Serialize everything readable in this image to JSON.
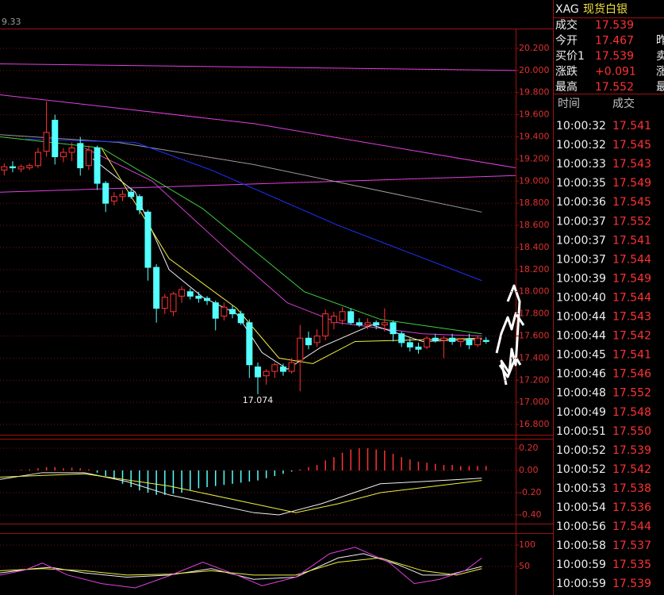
{
  "header": {
    "corner_label": "9.33",
    "symbol": "XAG",
    "name": "现货白银"
  },
  "quote": [
    {
      "label": "成交",
      "value": "17.539"
    },
    {
      "label": "今开",
      "value": "17.467",
      "extra": "昨"
    },
    {
      "label": "买价1",
      "value": "17.539",
      "extra": "卖"
    },
    {
      "label": "涨跌",
      "value": "+0.091",
      "extra": "涨"
    },
    {
      "label": "最高",
      "value": "17.552",
      "extra": "最"
    }
  ],
  "trades_header": [
    "时间",
    "成交"
  ],
  "trades": [
    [
      "10:00:32",
      "17.541"
    ],
    [
      "10:00:32",
      "17.545"
    ],
    [
      "10:00:33",
      "17.543"
    ],
    [
      "10:00:35",
      "17.549"
    ],
    [
      "10:00:36",
      "17.545"
    ],
    [
      "10:00:37",
      "17.552"
    ],
    [
      "10:00:37",
      "17.541"
    ],
    [
      "10:00:37",
      "17.544"
    ],
    [
      "10:00:39",
      "17.549"
    ],
    [
      "10:00:40",
      "17.544"
    ],
    [
      "10:00:44",
      "17.543"
    ],
    [
      "10:00:44",
      "17.542"
    ],
    [
      "10:00:45",
      "17.541"
    ],
    [
      "10:00:46",
      "17.546"
    ],
    [
      "10:00:48",
      "17.552"
    ],
    [
      "10:00:49",
      "17.548"
    ],
    [
      "10:00:51",
      "17.550"
    ],
    [
      "10:00:52",
      "17.539"
    ],
    [
      "10:00:52",
      "17.542"
    ],
    [
      "10:00:53",
      "17.538"
    ],
    [
      "10:00:54",
      "17.536"
    ],
    [
      "10:00:56",
      "17.544"
    ],
    [
      "10:00:58",
      "17.537"
    ],
    [
      "10:00:59",
      "17.535"
    ],
    [
      "10:00:59",
      "17.539"
    ]
  ],
  "chart_data": [
    {
      "type": "candlestick",
      "xlim": [
        0,
        61
      ],
      "ylim": [
        16.707,
        20.379
      ],
      "grid": true,
      "up_color": "#ff3232",
      "down_color": "#54ffff",
      "yticks": [
        {
          "value": 20.2,
          "label": "20.200"
        },
        {
          "value": 20.0,
          "label": "20.000"
        },
        {
          "value": 19.8,
          "label": "19.800"
        },
        {
          "value": 19.6,
          "label": "19.600"
        },
        {
          "value": 19.4,
          "label": "19.400"
        },
        {
          "value": 19.2,
          "label": "19.200"
        },
        {
          "value": 19.0,
          "label": "19.000"
        },
        {
          "value": 18.8,
          "label": "18.800"
        },
        {
          "value": 18.6,
          "label": "18.600"
        },
        {
          "value": 18.4,
          "label": "18.400"
        },
        {
          "value": 18.2,
          "label": "18.200"
        },
        {
          "value": 18.0,
          "label": "18.000"
        },
        {
          "value": 17.8,
          "label": "17.800"
        },
        {
          "value": 17.6,
          "label": "17.600"
        },
        {
          "value": 17.4,
          "label": "17.400"
        },
        {
          "value": 17.2,
          "label": "17.200"
        },
        {
          "value": 17.0,
          "label": "17.000"
        },
        {
          "value": 16.8,
          "label": "16.800"
        }
      ],
      "candles": [
        [
          19.1,
          19.16,
          19.05,
          19.13
        ],
        [
          19.13,
          19.18,
          19.08,
          19.12
        ],
        [
          19.11,
          19.15,
          19.08,
          19.13
        ],
        [
          19.12,
          19.16,
          19.1,
          19.14
        ],
        [
          19.14,
          19.3,
          19.12,
          19.26
        ],
        [
          19.27,
          19.72,
          19.22,
          19.44
        ],
        [
          19.55,
          19.6,
          19.15,
          19.22
        ],
        [
          19.22,
          19.3,
          19.17,
          19.26
        ],
        [
          19.26,
          19.35,
          19.18,
          19.3
        ],
        [
          19.34,
          19.4,
          19.05,
          19.12
        ],
        [
          19.14,
          19.32,
          19.1,
          19.28
        ],
        [
          19.3,
          19.32,
          18.92,
          18.98
        ],
        [
          18.98,
          19.0,
          18.72,
          18.8
        ],
        [
          18.82,
          18.9,
          18.78,
          18.86
        ],
        [
          18.86,
          18.92,
          18.82,
          18.88
        ],
        [
          18.9,
          18.94,
          18.84,
          18.86
        ],
        [
          18.86,
          18.88,
          18.7,
          18.74
        ],
        [
          18.72,
          18.74,
          18.1,
          18.22
        ],
        [
          18.22,
          18.25,
          17.72,
          17.85
        ],
        [
          17.85,
          17.98,
          17.8,
          17.95
        ],
        [
          17.82,
          18.0,
          17.78,
          17.98
        ],
        [
          17.96,
          18.05,
          17.9,
          18.02
        ],
        [
          18.0,
          18.03,
          17.93,
          17.96
        ],
        [
          17.96,
          18.0,
          17.9,
          17.94
        ],
        [
          17.94,
          17.96,
          17.88,
          17.92
        ],
        [
          17.9,
          17.92,
          17.65,
          17.76
        ],
        [
          17.78,
          17.9,
          17.74,
          17.86
        ],
        [
          17.84,
          17.88,
          17.76,
          17.8
        ],
        [
          17.8,
          17.83,
          17.7,
          17.72
        ],
        [
          17.72,
          17.75,
          17.22,
          17.34
        ],
        [
          17.32,
          17.36,
          17.074,
          17.23
        ],
        [
          17.24,
          17.3,
          17.16,
          17.28
        ],
        [
          17.28,
          17.36,
          17.22,
          17.34
        ],
        [
          17.32,
          17.35,
          17.24,
          17.28
        ],
        [
          17.28,
          17.4,
          17.26,
          17.36
        ],
        [
          17.38,
          17.7,
          17.1,
          17.58
        ],
        [
          17.58,
          17.64,
          17.48,
          17.52
        ],
        [
          17.54,
          17.66,
          17.5,
          17.6
        ],
        [
          17.6,
          17.84,
          17.56,
          17.8
        ],
        [
          17.72,
          17.82,
          17.66,
          17.78
        ],
        [
          17.74,
          17.86,
          17.7,
          17.82
        ],
        [
          17.82,
          17.85,
          17.7,
          17.72
        ],
        [
          17.72,
          17.76,
          17.68,
          17.7
        ],
        [
          17.7,
          17.76,
          17.66,
          17.72
        ],
        [
          17.72,
          17.74,
          17.66,
          17.7
        ],
        [
          17.7,
          17.85,
          17.64,
          17.72
        ],
        [
          17.72,
          17.74,
          17.55,
          17.62
        ],
        [
          17.62,
          17.64,
          17.5,
          17.54
        ],
        [
          17.54,
          17.58,
          17.46,
          17.5
        ],
        [
          17.5,
          17.54,
          17.44,
          17.48
        ],
        [
          17.5,
          17.6,
          17.48,
          17.58
        ],
        [
          17.58,
          17.62,
          17.54,
          17.56
        ],
        [
          17.56,
          17.6,
          17.4,
          17.58
        ],
        [
          17.58,
          17.62,
          17.52,
          17.55
        ],
        [
          17.55,
          17.58,
          17.5,
          17.57
        ],
        [
          17.57,
          17.62,
          17.48,
          17.52
        ],
        [
          17.52,
          17.6,
          17.5,
          17.58
        ],
        [
          17.56,
          17.59,
          17.53,
          17.55
        ]
      ],
      "low_label": {
        "x": 30.5,
        "value": 17.074,
        "label": "17.074"
      },
      "lines": [
        {
          "color": "#e040e0",
          "x": [
            0,
            61
          ],
          "values": [
            20.06,
            20.0
          ]
        },
        {
          "color": "#e040e0",
          "x": [
            0,
            30,
            61
          ],
          "values": [
            19.78,
            19.52,
            19.12
          ]
        },
        {
          "color": "#e040e0",
          "x": [
            0,
            61
          ],
          "values": [
            18.9,
            19.05
          ]
        },
        {
          "color": "#9a9a9a",
          "x": [
            0,
            14,
            30,
            57
          ],
          "values": [
            19.42,
            19.35,
            19.15,
            18.72
          ]
        },
        {
          "color": "#2030ff",
          "x": [
            3,
            16,
            25,
            40,
            57
          ],
          "values": [
            19.38,
            19.35,
            19.1,
            18.6,
            18.1
          ]
        },
        {
          "color": "#40d040",
          "x": [
            0,
            12,
            24,
            36,
            45,
            57
          ],
          "values": [
            19.4,
            19.3,
            18.75,
            18.0,
            17.75,
            17.62
          ]
        },
        {
          "color": "#d040d0",
          "x": [
            10,
            18,
            28,
            34,
            40,
            50,
            57
          ],
          "values": [
            19.3,
            19.0,
            18.3,
            17.9,
            17.72,
            17.62,
            17.6
          ]
        },
        {
          "color": "#f0f0f0",
          "x": [
            11,
            16,
            20,
            24,
            28,
            31,
            34,
            38,
            44,
            50,
            57
          ],
          "values": [
            19.2,
            18.9,
            18.2,
            17.95,
            17.8,
            17.45,
            17.3,
            17.5,
            17.7,
            17.55,
            17.57
          ]
        },
        {
          "color": "#f0f040",
          "x": [
            12,
            20,
            28,
            33,
            37,
            42,
            57
          ],
          "values": [
            19.3,
            18.3,
            17.85,
            17.4,
            17.35,
            17.55,
            17.58
          ]
        }
      ]
    },
    {
      "type": "bar",
      "xlim": [
        0,
        61
      ],
      "ylim": [
        -0.443,
        0.286
      ],
      "grid": true,
      "up_color": "#ff3232",
      "down_color": "#54ffff",
      "yticks": [
        {
          "value": 0.2,
          "label": "0.20"
        },
        {
          "value": 0,
          "label": "0.00"
        },
        {
          "value": -0.2,
          "label": "-0.20"
        },
        {
          "value": -0.4,
          "label": "-0.40"
        }
      ],
      "values": [
        0,
        0,
        0.005,
        0.01,
        0.02,
        0.03,
        0.03,
        0.02,
        0.025,
        0.02,
        0.01,
        -0.02,
        -0.05,
        -0.08,
        -0.12,
        -0.15,
        -0.18,
        -0.2,
        -0.22,
        -0.22,
        -0.21,
        -0.2,
        -0.18,
        -0.16,
        -0.15,
        -0.14,
        -0.13,
        -0.12,
        -0.11,
        -0.1,
        -0.09,
        -0.07,
        -0.05,
        -0.03,
        -0.01,
        0.01,
        0.03,
        0.05,
        0.09,
        0.12,
        0.16,
        0.19,
        0.2,
        0.2,
        0.19,
        0.18,
        0.15,
        0.12,
        0.1,
        0.08,
        0.07,
        0.06,
        0.05,
        0.05,
        0.04,
        0.04,
        0.04,
        0.04
      ],
      "lines": [
        {
          "color": "#f0f0f0",
          "x": [
            0,
            5,
            10,
            15,
            20,
            25,
            30,
            33,
            38,
            45,
            50,
            57
          ],
          "values": [
            -0.08,
            -0.02,
            -0.02,
            -0.1,
            -0.22,
            -0.3,
            -0.38,
            -0.4,
            -0.3,
            -0.12,
            -0.1,
            -0.07
          ]
        },
        {
          "color": "#f0f040",
          "x": [
            0,
            10,
            20,
            30,
            35,
            40,
            45,
            57
          ],
          "values": [
            -0.06,
            -0.03,
            -0.14,
            -0.3,
            -0.38,
            -0.3,
            -0.2,
            -0.09
          ]
        }
      ]
    },
    {
      "type": "line",
      "xlim": [
        0,
        61
      ],
      "ylim": [
        -13,
        128
      ],
      "grid": true,
      "yticks": [
        100,
        50
      ],
      "lines": [
        {
          "color": "#f0f0f0",
          "x": [
            0,
            4,
            6,
            10,
            15,
            20,
            25,
            30,
            35,
            40,
            43,
            47,
            50,
            53,
            57
          ],
          "values": [
            35,
            45,
            48,
            35,
            25,
            30,
            45,
            20,
            25,
            70,
            80,
            55,
            30,
            30,
            50
          ]
        },
        {
          "color": "#f0f040",
          "x": [
            0,
            5,
            10,
            15,
            20,
            25,
            30,
            35,
            40,
            45,
            50,
            54,
            57
          ],
          "values": [
            40,
            45,
            40,
            30,
            32,
            40,
            30,
            30,
            60,
            70,
            40,
            30,
            45
          ]
        },
        {
          "color": "#e040e0",
          "x": [
            0,
            3,
            5,
            8,
            12,
            16,
            20,
            24,
            28,
            31,
            35,
            39,
            42,
            46,
            49,
            52,
            55,
            57
          ],
          "values": [
            30,
            42,
            58,
            30,
            10,
            0,
            28,
            60,
            30,
            5,
            25,
            80,
            95,
            60,
            10,
            20,
            40,
            70
          ]
        }
      ]
    }
  ]
}
